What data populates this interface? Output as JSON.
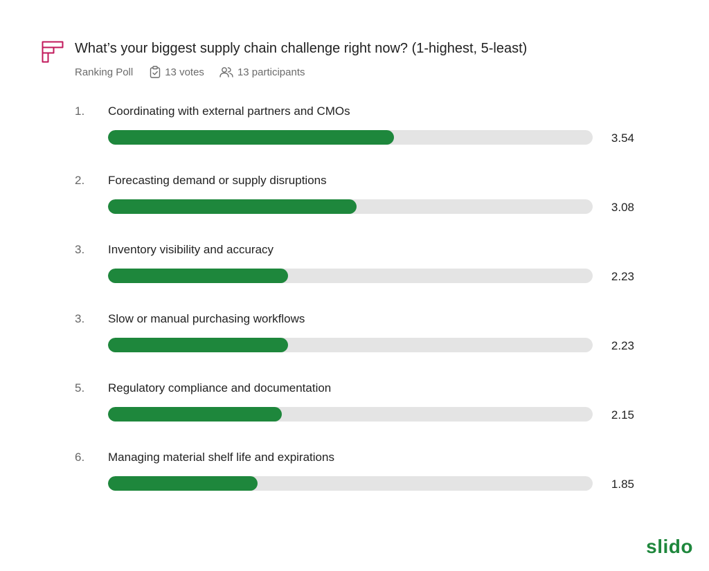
{
  "header": {
    "icon": "ranking-poll-icon",
    "title": "What’s your biggest supply chain challenge right now? (1-highest, 5-least)",
    "poll_type": "Ranking Poll",
    "votes_icon": "clipboard-check-icon",
    "votes": "13 votes",
    "participants_icon": "people-icon",
    "participants": "13 participants"
  },
  "colors": {
    "accent": "#1e873c",
    "track": "#e4e4e4",
    "icon": "#c2185b"
  },
  "chart_data": {
    "type": "bar",
    "orientation": "horizontal",
    "max": 6,
    "items": [
      {
        "rank": "1.",
        "label": "Coordinating with external partners and CMOs",
        "value": 3.54,
        "display": "3.54"
      },
      {
        "rank": "2.",
        "label": "Forecasting demand or supply disruptions",
        "value": 3.08,
        "display": "3.08"
      },
      {
        "rank": "3.",
        "label": "Inventory visibility and accuracy",
        "value": 2.23,
        "display": "2.23"
      },
      {
        "rank": "3.",
        "label": "Slow or manual purchasing workflows",
        "value": 2.23,
        "display": "2.23"
      },
      {
        "rank": "5.",
        "label": "Regulatory compliance and documentation",
        "value": 2.15,
        "display": "2.15"
      },
      {
        "rank": "6.",
        "label": "Managing material shelf life and expirations",
        "value": 1.85,
        "display": "1.85"
      }
    ]
  },
  "footer": {
    "brand": "slido"
  }
}
